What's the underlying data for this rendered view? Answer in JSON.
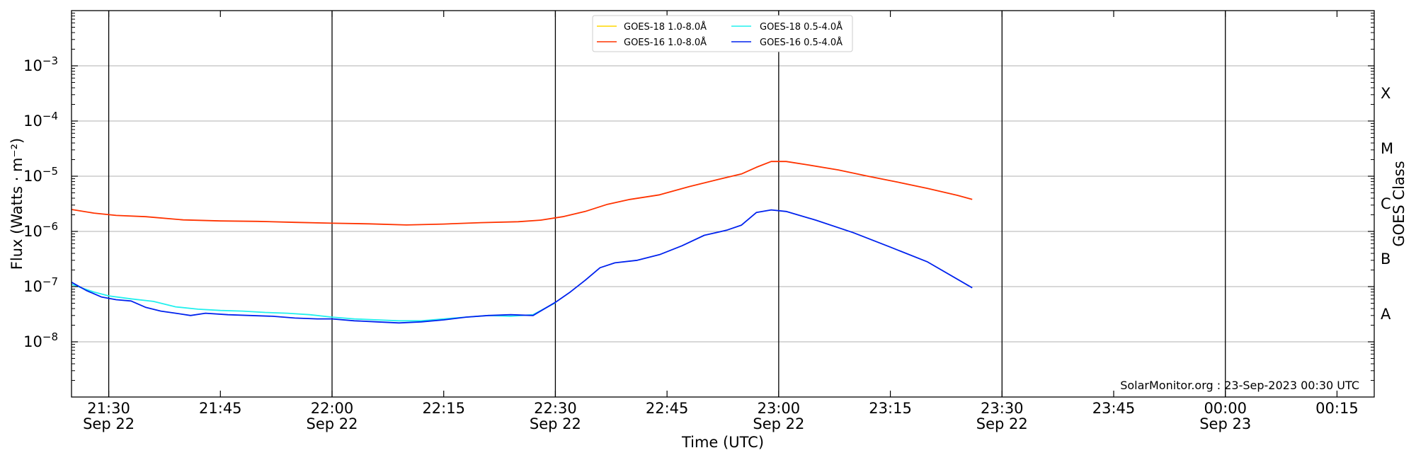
{
  "chart_data": {
    "type": "line",
    "title": "",
    "xlabel": "Time (UTC)",
    "ylabel": "Flux (Watts · m⁻²)",
    "y2label": "GOES Class",
    "y_scale": "log",
    "ylim": [
      1e-09,
      0.01
    ],
    "y_ticks": [
      {
        "value": 1e-08,
        "base": "10",
        "exp": "−8"
      },
      {
        "value": 1e-07,
        "base": "10",
        "exp": "−7"
      },
      {
        "value": 1e-06,
        "base": "10",
        "exp": "−6"
      },
      {
        "value": 1e-05,
        "base": "10",
        "exp": "−5"
      },
      {
        "value": 0.0001,
        "base": "10",
        "exp": "−4"
      },
      {
        "value": 0.001,
        "base": "10",
        "exp": "−3"
      }
    ],
    "xlim": [
      "2023-09-22 21:25",
      "2023-09-23 00:20"
    ],
    "x_ticks": [
      {
        "time": "2023-09-22 21:30",
        "label": "21:30",
        "date": "Sep 22"
      },
      {
        "time": "2023-09-22 21:45",
        "label": "21:45",
        "date": ""
      },
      {
        "time": "2023-09-22 22:00",
        "label": "22:00",
        "date": "Sep 22"
      },
      {
        "time": "2023-09-22 22:15",
        "label": "22:15",
        "date": ""
      },
      {
        "time": "2023-09-22 22:30",
        "label": "22:30",
        "date": "Sep 22"
      },
      {
        "time": "2023-09-22 22:45",
        "label": "22:45",
        "date": ""
      },
      {
        "time": "2023-09-22 23:00",
        "label": "23:00",
        "date": "Sep 22"
      },
      {
        "time": "2023-09-22 23:15",
        "label": "23:15",
        "date": ""
      },
      {
        "time": "2023-09-22 23:30",
        "label": "23:30",
        "date": "Sep 22"
      },
      {
        "time": "2023-09-22 23:45",
        "label": "23:45",
        "date": ""
      },
      {
        "time": "2023-09-23 00:00",
        "label": "00:00",
        "date": "Sep 23"
      },
      {
        "time": "2023-09-23 00:15",
        "label": "00:15",
        "date": ""
      }
    ],
    "vertical_lines": [
      "2023-09-22 21:30",
      "2023-09-22 22:00",
      "2023-09-22 22:30",
      "2023-09-22 23:00",
      "2023-09-22 23:30",
      "2023-09-23 00:00"
    ],
    "grid": "horizontal",
    "legend_position": "top-center",
    "goes_classes": [
      {
        "label": "A",
        "value": 3.16e-08
      },
      {
        "label": "B",
        "value": 3.16e-07
      },
      {
        "label": "C",
        "value": 3.16e-06
      },
      {
        "label": "M",
        "value": 3.16e-05
      },
      {
        "label": "X",
        "value": 0.000316
      }
    ],
    "series": [
      {
        "name": "GOES-18 1.0-8.0Å",
        "color": "#ffd700",
        "x": [],
        "y": []
      },
      {
        "name": "GOES-16 1.0-8.0Å",
        "color": "#ff3300",
        "x": [
          "2023-09-22 21:25",
          "2023-09-22 21:28",
          "2023-09-22 21:31",
          "2023-09-22 21:35",
          "2023-09-22 21:40",
          "2023-09-22 21:45",
          "2023-09-22 21:50",
          "2023-09-22 21:55",
          "2023-09-22 22:00",
          "2023-09-22 22:05",
          "2023-09-22 22:10",
          "2023-09-22 22:15",
          "2023-09-22 22:20",
          "2023-09-22 22:25",
          "2023-09-22 22:28",
          "2023-09-22 22:31",
          "2023-09-22 22:34",
          "2023-09-22 22:37",
          "2023-09-22 22:40",
          "2023-09-22 22:44",
          "2023-09-22 22:48",
          "2023-09-22 22:52",
          "2023-09-22 22:55",
          "2023-09-22 22:57",
          "2023-09-22 22:59",
          "2023-09-22 23:01",
          "2023-09-22 23:04",
          "2023-09-22 23:08",
          "2023-09-22 23:12",
          "2023-09-22 23:16",
          "2023-09-22 23:20",
          "2023-09-22 23:24",
          "2023-09-22 23:26"
        ],
        "y": [
          2.5e-06,
          2.15e-06,
          1.95e-06,
          1.85e-06,
          1.62e-06,
          1.55e-06,
          1.52e-06,
          1.46e-06,
          1.41e-06,
          1.37e-06,
          1.31e-06,
          1.36e-06,
          1.44e-06,
          1.5e-06,
          1.6e-06,
          1.85e-06,
          2.3e-06,
          3.1e-06,
          3.8e-06,
          4.6e-06,
          6.5e-06,
          8.8e-06,
          1.1e-05,
          1.45e-05,
          1.85e-05,
          1.85e-05,
          1.6e-05,
          1.3e-05,
          1e-05,
          7.8e-06,
          6e-06,
          4.5e-06,
          3.8e-06
        ]
      },
      {
        "name": "GOES-18 0.5-4.0Å",
        "color": "#22f0ee",
        "x": [
          "2023-09-22 21:25",
          "2023-09-22 21:28",
          "2023-09-22 21:30",
          "2023-09-22 21:33",
          "2023-09-22 21:36",
          "2023-09-22 21:39",
          "2023-09-22 21:42",
          "2023-09-22 21:45",
          "2023-09-22 21:48",
          "2023-09-22 21:51",
          "2023-09-22 21:54",
          "2023-09-22 21:57",
          "2023-09-22 22:00",
          "2023-09-22 22:03",
          "2023-09-22 22:06",
          "2023-09-22 22:09",
          "2023-09-22 22:12",
          "2023-09-22 22:15",
          "2023-09-22 22:18",
          "2023-09-22 22:21",
          "2023-09-22 22:24",
          "2023-09-22 22:27",
          "2023-09-22 22:30"
        ],
        "y": [
          1.1e-07,
          8e-08,
          6.8e-08,
          6e-08,
          5.4e-08,
          4.3e-08,
          3.9e-08,
          3.7e-08,
          3.6e-08,
          3.4e-08,
          3.3e-08,
          3.1e-08,
          2.8e-08,
          2.6e-08,
          2.5e-08,
          2.4e-08,
          2.4e-08,
          2.6e-08,
          2.8e-08,
          3e-08,
          2.9e-08,
          3.1e-08,
          5.1e-08
        ]
      },
      {
        "name": "GOES-16 0.5-4.0Å",
        "color": "#0022ee",
        "x": [
          "2023-09-22 21:25",
          "2023-09-22 21:27",
          "2023-09-22 21:29",
          "2023-09-22 21:31",
          "2023-09-22 21:33",
          "2023-09-22 21:35",
          "2023-09-22 21:37",
          "2023-09-22 21:39",
          "2023-09-22 21:41",
          "2023-09-22 21:43",
          "2023-09-22 21:46",
          "2023-09-22 21:49",
          "2023-09-22 21:52",
          "2023-09-22 21:55",
          "2023-09-22 21:58",
          "2023-09-22 22:00",
          "2023-09-22 22:03",
          "2023-09-22 22:06",
          "2023-09-22 22:09",
          "2023-09-22 22:12",
          "2023-09-22 22:15",
          "2023-09-22 22:18",
          "2023-09-22 22:21",
          "2023-09-22 22:24",
          "2023-09-22 22:27",
          "2023-09-22 22:30",
          "2023-09-22 22:32",
          "2023-09-22 22:34",
          "2023-09-22 22:36",
          "2023-09-22 22:38",
          "2023-09-22 22:41",
          "2023-09-22 22:44",
          "2023-09-22 22:47",
          "2023-09-22 22:50",
          "2023-09-22 22:53",
          "2023-09-22 22:55",
          "2023-09-22 22:57",
          "2023-09-22 22:59",
          "2023-09-22 23:01",
          "2023-09-22 23:05",
          "2023-09-22 23:10",
          "2023-09-22 23:15",
          "2023-09-22 23:20",
          "2023-09-22 23:26"
        ],
        "y": [
          1.2e-07,
          8.5e-08,
          6.5e-08,
          5.8e-08,
          5.5e-08,
          4.2e-08,
          3.6e-08,
          3.3e-08,
          3e-08,
          3.3e-08,
          3.1e-08,
          3e-08,
          2.9e-08,
          2.7e-08,
          2.6e-08,
          2.6e-08,
          2.4e-08,
          2.3e-08,
          2.2e-08,
          2.3e-08,
          2.5e-08,
          2.8e-08,
          3e-08,
          3.1e-08,
          3e-08,
          5.2e-08,
          8e-08,
          1.3e-07,
          2.2e-07,
          2.7e-07,
          3e-07,
          3.8e-07,
          5.5e-07,
          8.5e-07,
          1.05e-06,
          1.3e-06,
          2.2e-06,
          2.45e-06,
          2.3e-06,
          1.6e-06,
          9.5e-07,
          5.2e-07,
          2.8e-07,
          9.5e-08
        ]
      }
    ]
  },
  "watermark": "SolarMonitor.org : 23-Sep-2023 00:30 UTC"
}
